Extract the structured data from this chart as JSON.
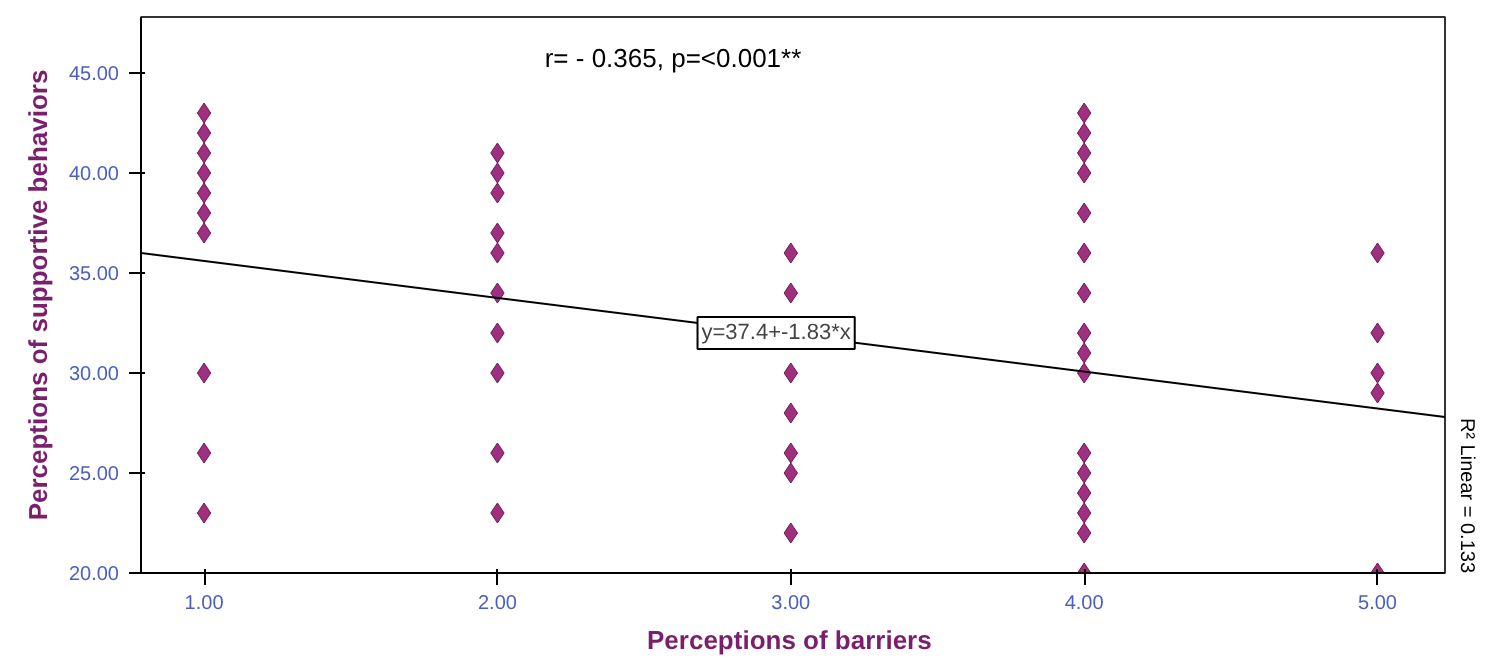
{
  "chart_data": {
    "type": "scatter",
    "title": "r= - 0.365, p=<0.001**",
    "xlabel": "Perceptions of  barriers",
    "ylabel": "Perceptions of supportive behaviors",
    "series": [
      {
        "color": "#a0307f",
        "x": [
          1,
          1,
          1,
          1,
          1,
          1,
          1,
          1,
          1,
          1,
          2,
          2,
          2,
          2,
          2,
          2,
          2,
          2,
          2,
          2,
          3,
          3,
          3,
          3,
          3,
          3,
          3,
          4,
          4,
          4,
          4,
          4,
          4,
          4,
          4,
          4,
          4,
          4,
          4,
          4,
          4,
          4,
          4,
          5,
          5,
          5,
          5,
          5
        ],
        "values": [
          43,
          42,
          41,
          40,
          39,
          38,
          37,
          30,
          26,
          23,
          41,
          40,
          39,
          37,
          36,
          34,
          32,
          30,
          26,
          23,
          36,
          34,
          30,
          28,
          26,
          25,
          22,
          43,
          42,
          41,
          40,
          38,
          36,
          34,
          32,
          31,
          30,
          26,
          25,
          24,
          23,
          22,
          20,
          36,
          32,
          30,
          29,
          20
        ]
      },
      {
        "type": "line",
        "color": "#000000",
        "marker": "none",
        "x": [
          0.785,
          5.23
        ],
        "values": [
          36.0,
          27.8
        ]
      }
    ],
    "annotations": [
      {
        "text": "y=37.4+-1.83*x",
        "x": 2.95,
        "y": 32
      },
      "R² Linear = 0.133"
    ],
    "marker": "diamond",
    "grid": false,
    "xlim": [
      0.785,
      5.23
    ],
    "ylim": [
      20,
      47.8
    ],
    "xticks": [
      {
        "value": 1,
        "label": "1.00"
      },
      {
        "value": 2,
        "label": "2.00"
      },
      {
        "value": 3,
        "label": "3.00"
      },
      {
        "value": 4,
        "label": "4.00"
      },
      {
        "value": 5,
        "label": "5.00"
      }
    ],
    "yticks": [
      {
        "value": 20,
        "label": "20.00"
      },
      {
        "value": 25,
        "label": "25.00"
      },
      {
        "value": 30,
        "label": "30.00"
      },
      {
        "value": 35,
        "label": "35.00"
      },
      {
        "value": 40,
        "label": "40.00"
      },
      {
        "value": 45,
        "label": "45.00"
      }
    ]
  }
}
